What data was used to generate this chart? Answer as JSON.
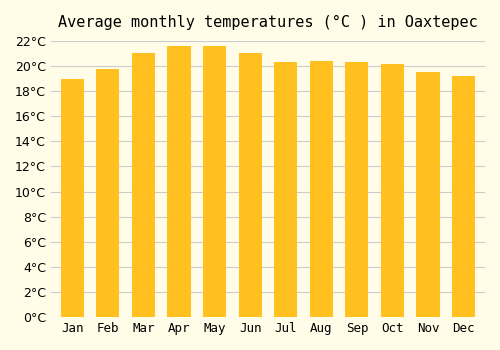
{
  "title": "Average monthly temperatures (°C ) in Oaxtepec",
  "months": [
    "Jan",
    "Feb",
    "Mar",
    "Apr",
    "May",
    "Jun",
    "Jul",
    "Aug",
    "Sep",
    "Oct",
    "Nov",
    "Dec"
  ],
  "values": [
    19.0,
    19.8,
    21.0,
    21.6,
    21.6,
    21.0,
    20.3,
    20.4,
    20.3,
    20.2,
    19.5,
    19.2
  ],
  "bar_color_top": "#FFC020",
  "bar_color_bottom": "#FFD060",
  "background_color": "#FFFDE8",
  "grid_color": "#CCCCCC",
  "ylim": [
    0,
    22
  ],
  "ytick_step": 2,
  "title_fontsize": 11,
  "tick_fontsize": 9,
  "bar_width": 0.65
}
